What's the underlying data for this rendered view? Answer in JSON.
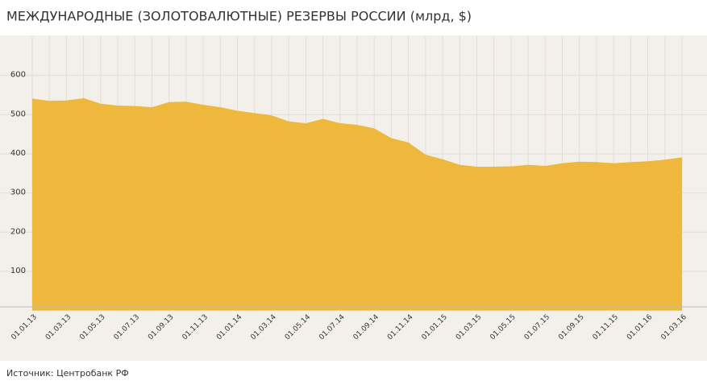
{
  "chart_data": {
    "type": "area",
    "title": "МЕЖДУНАРОДНЫЕ (ЗОЛОТОВАЛЮТНЫЕ) РЕЗЕРВЫ РОССИИ (млрд, $)",
    "source": "Источник: Центробанк РФ",
    "categories": [
      "01.01.13",
      null,
      "01.03.13",
      null,
      "01.05.13",
      null,
      "01.07.13",
      null,
      "01.09.13",
      null,
      "01.11.13",
      null,
      "01.01.14",
      null,
      "01.03.14",
      null,
      "01.05.14",
      null,
      "01.07.14",
      null,
      "01.09.14",
      null,
      "01.11.14",
      null,
      "01.01.15",
      null,
      "01.03.15",
      null,
      "01.05.15",
      null,
      "01.07.15",
      null,
      "01.09.15",
      null,
      "01.11.15",
      null,
      "01.01.16",
      null,
      "01.03.16"
    ],
    "values": [
      541,
      535,
      536,
      542,
      528,
      523,
      522,
      519,
      532,
      533,
      525,
      519,
      510,
      504,
      498,
      483,
      478,
      489,
      478,
      474,
      465,
      440,
      429,
      398,
      386,
      372,
      367,
      367,
      368,
      372,
      369,
      376,
      380,
      379,
      376,
      379,
      381,
      385,
      391
    ],
    "color": "#edb83b",
    "ylim": [
      0,
      700
    ],
    "yticks": [
      100,
      200,
      300,
      400,
      500,
      600
    ],
    "grid": true
  }
}
